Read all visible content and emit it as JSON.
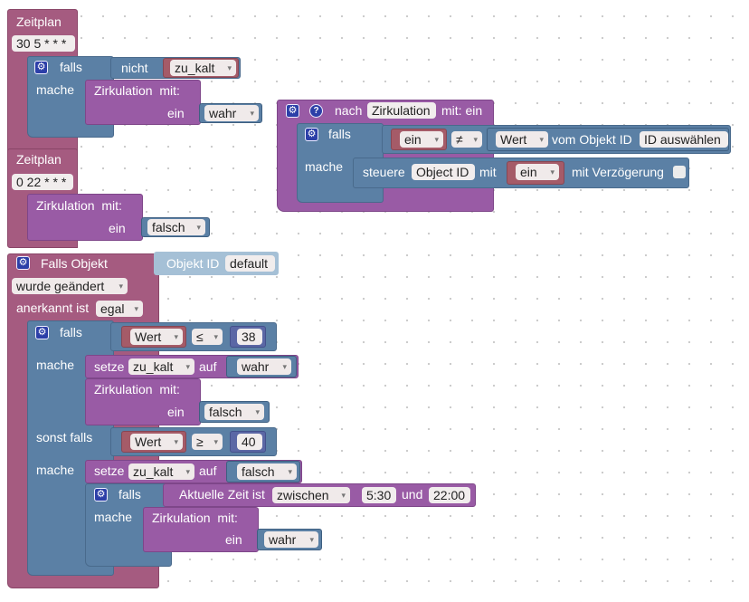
{
  "schedule1": {
    "title": "Zeitplan",
    "cron": "30 5 * * *",
    "if_label": "falls",
    "not_label": "nicht",
    "var": "zu_kalt",
    "do_label": "mache",
    "call_label": "Zirkulation",
    "with_label": "mit:",
    "param": "ein",
    "value": "wahr"
  },
  "schedule2": {
    "title": "Zeitplan",
    "cron": "0 22 * * *",
    "call_label": "Zirkulation",
    "with_label": "mit:",
    "param": "ein",
    "value": "falsch"
  },
  "procedure": {
    "after_label": "nach",
    "name": "Zirkulation",
    "with_label": "mit: ein",
    "if_label": "falls",
    "var": "ein",
    "op": "≠",
    "value_label": "Wert",
    "from_object": "vom Objekt ID",
    "id_select": "ID auswählen",
    "do_label": "mache",
    "control_label": "steuere",
    "object_id": "Object ID",
    "with2_label": "mit",
    "ein_var": "ein",
    "delay_label": "mit Verzögerung"
  },
  "trigger": {
    "title": "Falls Objekt",
    "objid_label": "Objekt ID",
    "objid_value": "default",
    "changed": "wurde geändert",
    "ack_label": "anerkannt ist",
    "ack_value": "egal",
    "if_label": "falls",
    "cond1": {
      "var": "Wert",
      "op": "≤",
      "num": "38"
    },
    "do_label": "mache",
    "set_label": "setze",
    "set_var": "zu_kalt",
    "to_label": "auf",
    "set_val1": "wahr",
    "call_label": "Zirkulation",
    "with_label": "mit:",
    "param": "ein",
    "call_val1": "falsch",
    "elseif_label": "sonst falls",
    "cond2": {
      "var": "Wert",
      "op": "≥",
      "num": "40"
    },
    "set_val2": "falsch",
    "inner_if_label": "falls",
    "time_label": "Aktuelle Zeit ist",
    "between": "zwischen",
    "time_from": "5:30",
    "and_label": "und",
    "time_to": "22:00",
    "inner_do_label": "mache",
    "call_val2": "wahr"
  },
  "colors": {
    "event": "#a55b80",
    "logic": "#5b80a5",
    "procedure": "#995ba5"
  }
}
